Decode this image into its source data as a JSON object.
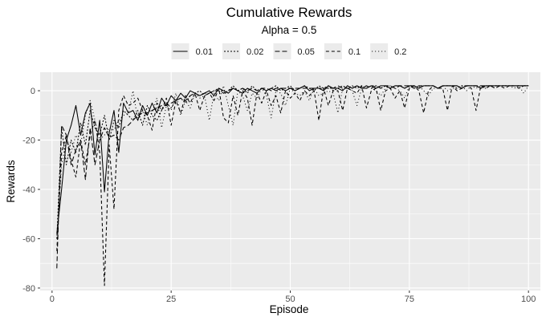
{
  "chart_data": {
    "type": "line",
    "title": "Cumulative Rewards",
    "subtitle": "Alpha = 0.5",
    "xlabel": "Episode",
    "ylabel": "Rewards",
    "xlim": [
      -2.5,
      102.5
    ],
    "ylim": [
      -81,
      7.5
    ],
    "x_ticks": [
      0,
      25,
      50,
      75,
      100
    ],
    "y_ticks": [
      0,
      -20,
      -40,
      -60,
      -80
    ],
    "grid": true,
    "legend_position": "top",
    "x": [
      1,
      2,
      3,
      4,
      5,
      6,
      7,
      8,
      9,
      10,
      11,
      12,
      13,
      14,
      15,
      16,
      17,
      18,
      19,
      20,
      21,
      22,
      23,
      24,
      25,
      26,
      27,
      28,
      29,
      30,
      31,
      32,
      33,
      34,
      35,
      36,
      37,
      38,
      39,
      40,
      41,
      42,
      43,
      44,
      45,
      46,
      47,
      48,
      49,
      50,
      51,
      52,
      53,
      54,
      55,
      56,
      57,
      58,
      59,
      60,
      61,
      62,
      63,
      64,
      65,
      66,
      67,
      68,
      69,
      70,
      71,
      72,
      73,
      74,
      75,
      76,
      77,
      78,
      79,
      80,
      81,
      82,
      83,
      84,
      85,
      86,
      87,
      88,
      89,
      90,
      91,
      92,
      93,
      94,
      95,
      96,
      97,
      98,
      99,
      100
    ],
    "series": [
      {
        "name": "0.01",
        "dash": "",
        "values": [
          -58,
          -40,
          -20,
          -14,
          -6,
          -18,
          -9,
          -5,
          -26,
          -12,
          -41,
          -17,
          -8,
          -25,
          -5,
          -9,
          -8,
          -12,
          -6,
          -10,
          -5,
          -9,
          -3,
          -6,
          -2,
          -4,
          -1,
          -3,
          0,
          -1,
          -2,
          -1,
          0,
          -2,
          1,
          0,
          -1,
          1,
          0,
          -1,
          1,
          0,
          -1,
          1,
          0,
          1,
          0,
          1,
          0,
          1,
          0,
          1,
          2,
          0,
          1,
          1,
          0,
          2,
          1,
          1,
          0,
          2,
          1,
          2,
          1,
          1,
          2,
          1,
          2,
          2,
          1,
          2,
          2,
          1,
          2,
          2,
          1,
          2,
          2,
          2,
          1,
          2,
          2,
          2,
          2,
          1,
          2,
          2,
          2,
          1,
          2,
          2,
          2,
          2,
          2,
          2,
          2,
          2,
          2,
          2
        ]
      },
      {
        "name": "0.02",
        "dash": "2 2",
        "values": [
          -60,
          -15,
          -30,
          -20,
          -25,
          -13,
          -22,
          -8,
          -15,
          -18,
          -10,
          -20,
          -12,
          -15,
          -8,
          -10,
          -12,
          -8,
          -14,
          -6,
          -10,
          -12,
          -8,
          -5,
          -7,
          -4,
          -3,
          -5,
          -2,
          -1,
          0,
          -2,
          -1,
          0,
          1,
          -1,
          0,
          2,
          0,
          1,
          -1,
          2,
          0,
          1,
          0,
          1,
          2,
          0,
          1,
          2,
          0,
          1,
          2,
          1,
          0,
          2,
          1,
          2,
          0,
          1,
          2,
          1,
          2,
          1,
          2,
          1,
          2,
          2,
          1,
          2,
          1,
          2,
          2,
          1,
          2,
          2,
          1,
          2,
          2,
          2,
          1,
          2,
          2,
          2,
          1,
          2,
          2,
          2,
          2,
          1,
          2,
          2,
          2,
          2,
          2,
          2,
          2,
          2,
          2,
          2
        ]
      },
      {
        "name": "0.05",
        "dash": "6 3",
        "values": [
          -72,
          -14,
          -18,
          -30,
          -24,
          -20,
          -36,
          -15,
          -30,
          -20,
          -15,
          -19,
          -18,
          -20,
          -15,
          -14,
          -12,
          -10,
          -9,
          -9,
          -8,
          -7,
          -6,
          -6,
          -5,
          -4,
          -3,
          -4,
          -2,
          -1,
          -2,
          -1,
          -1,
          0,
          0,
          -1,
          0,
          1,
          0,
          1,
          0,
          1,
          0,
          1,
          1,
          0,
          1,
          1,
          1,
          1,
          1,
          1,
          1,
          1,
          1,
          1,
          1,
          1,
          1,
          2,
          1,
          1,
          1,
          2,
          1,
          2,
          1,
          2,
          1,
          2,
          2,
          1,
          2,
          2,
          2,
          1,
          2,
          2,
          2,
          2,
          1,
          2,
          2,
          2,
          2,
          1,
          2,
          2,
          2,
          2,
          2,
          2,
          2,
          2,
          2,
          2,
          2,
          2,
          2,
          2
        ]
      },
      {
        "name": "0.1",
        "dash": "4 3",
        "values": [
          -65,
          -25,
          -18,
          -28,
          -35,
          -20,
          -30,
          -18,
          -12,
          -25,
          -79,
          -22,
          -48,
          -8,
          -2,
          -6,
          -5,
          -3,
          -8,
          -10,
          -16,
          -5,
          -8,
          -3,
          -14,
          -4,
          -9,
          -2,
          -5,
          -1,
          -8,
          -2,
          -1,
          -4,
          1,
          -11,
          -13,
          -2,
          -10,
          0,
          -3,
          -14,
          -1,
          -5,
          0,
          -6,
          -2,
          -9,
          0,
          -3,
          -1,
          -4,
          0,
          -2,
          0,
          -12,
          1,
          -6,
          0,
          0,
          -8,
          1,
          0,
          -1,
          2,
          -7,
          0,
          1,
          -8,
          0,
          1,
          -3,
          0,
          -7,
          1,
          2,
          0,
          -9,
          0,
          2,
          1,
          1,
          -8,
          2,
          0,
          1,
          2,
          1,
          -8,
          2,
          1,
          2,
          1,
          2,
          1,
          2,
          2,
          1,
          2,
          2
        ]
      },
      {
        "name": "0.2",
        "dash": "1 3",
        "values": [
          -60,
          -30,
          -20,
          -25,
          -18,
          -22,
          -10,
          -4,
          -12,
          -20,
          -18,
          -15,
          -16,
          -12,
          -10,
          -9,
          0,
          -12,
          -8,
          -14,
          -9,
          -3,
          -15,
          -6,
          -8,
          -1,
          -10,
          -4,
          -7,
          -1,
          -3,
          -2,
          -12,
          -1,
          -4,
          2,
          -6,
          -14,
          0,
          -2,
          -8,
          -1,
          -3,
          1,
          -2,
          -11,
          0,
          -1,
          -6,
          1,
          -1,
          -2,
          0,
          -4,
          1,
          -2,
          -1,
          0,
          -1,
          -9,
          1,
          2,
          0,
          -6,
          1,
          2,
          1,
          0,
          -2,
          1,
          2,
          1,
          0,
          -3,
          2,
          1,
          2,
          0,
          -2,
          1,
          1,
          2,
          0,
          1,
          1,
          2,
          0,
          2,
          1,
          2,
          1,
          2,
          1,
          2,
          2,
          2,
          1,
          2,
          -1,
          2
        ]
      }
    ]
  }
}
